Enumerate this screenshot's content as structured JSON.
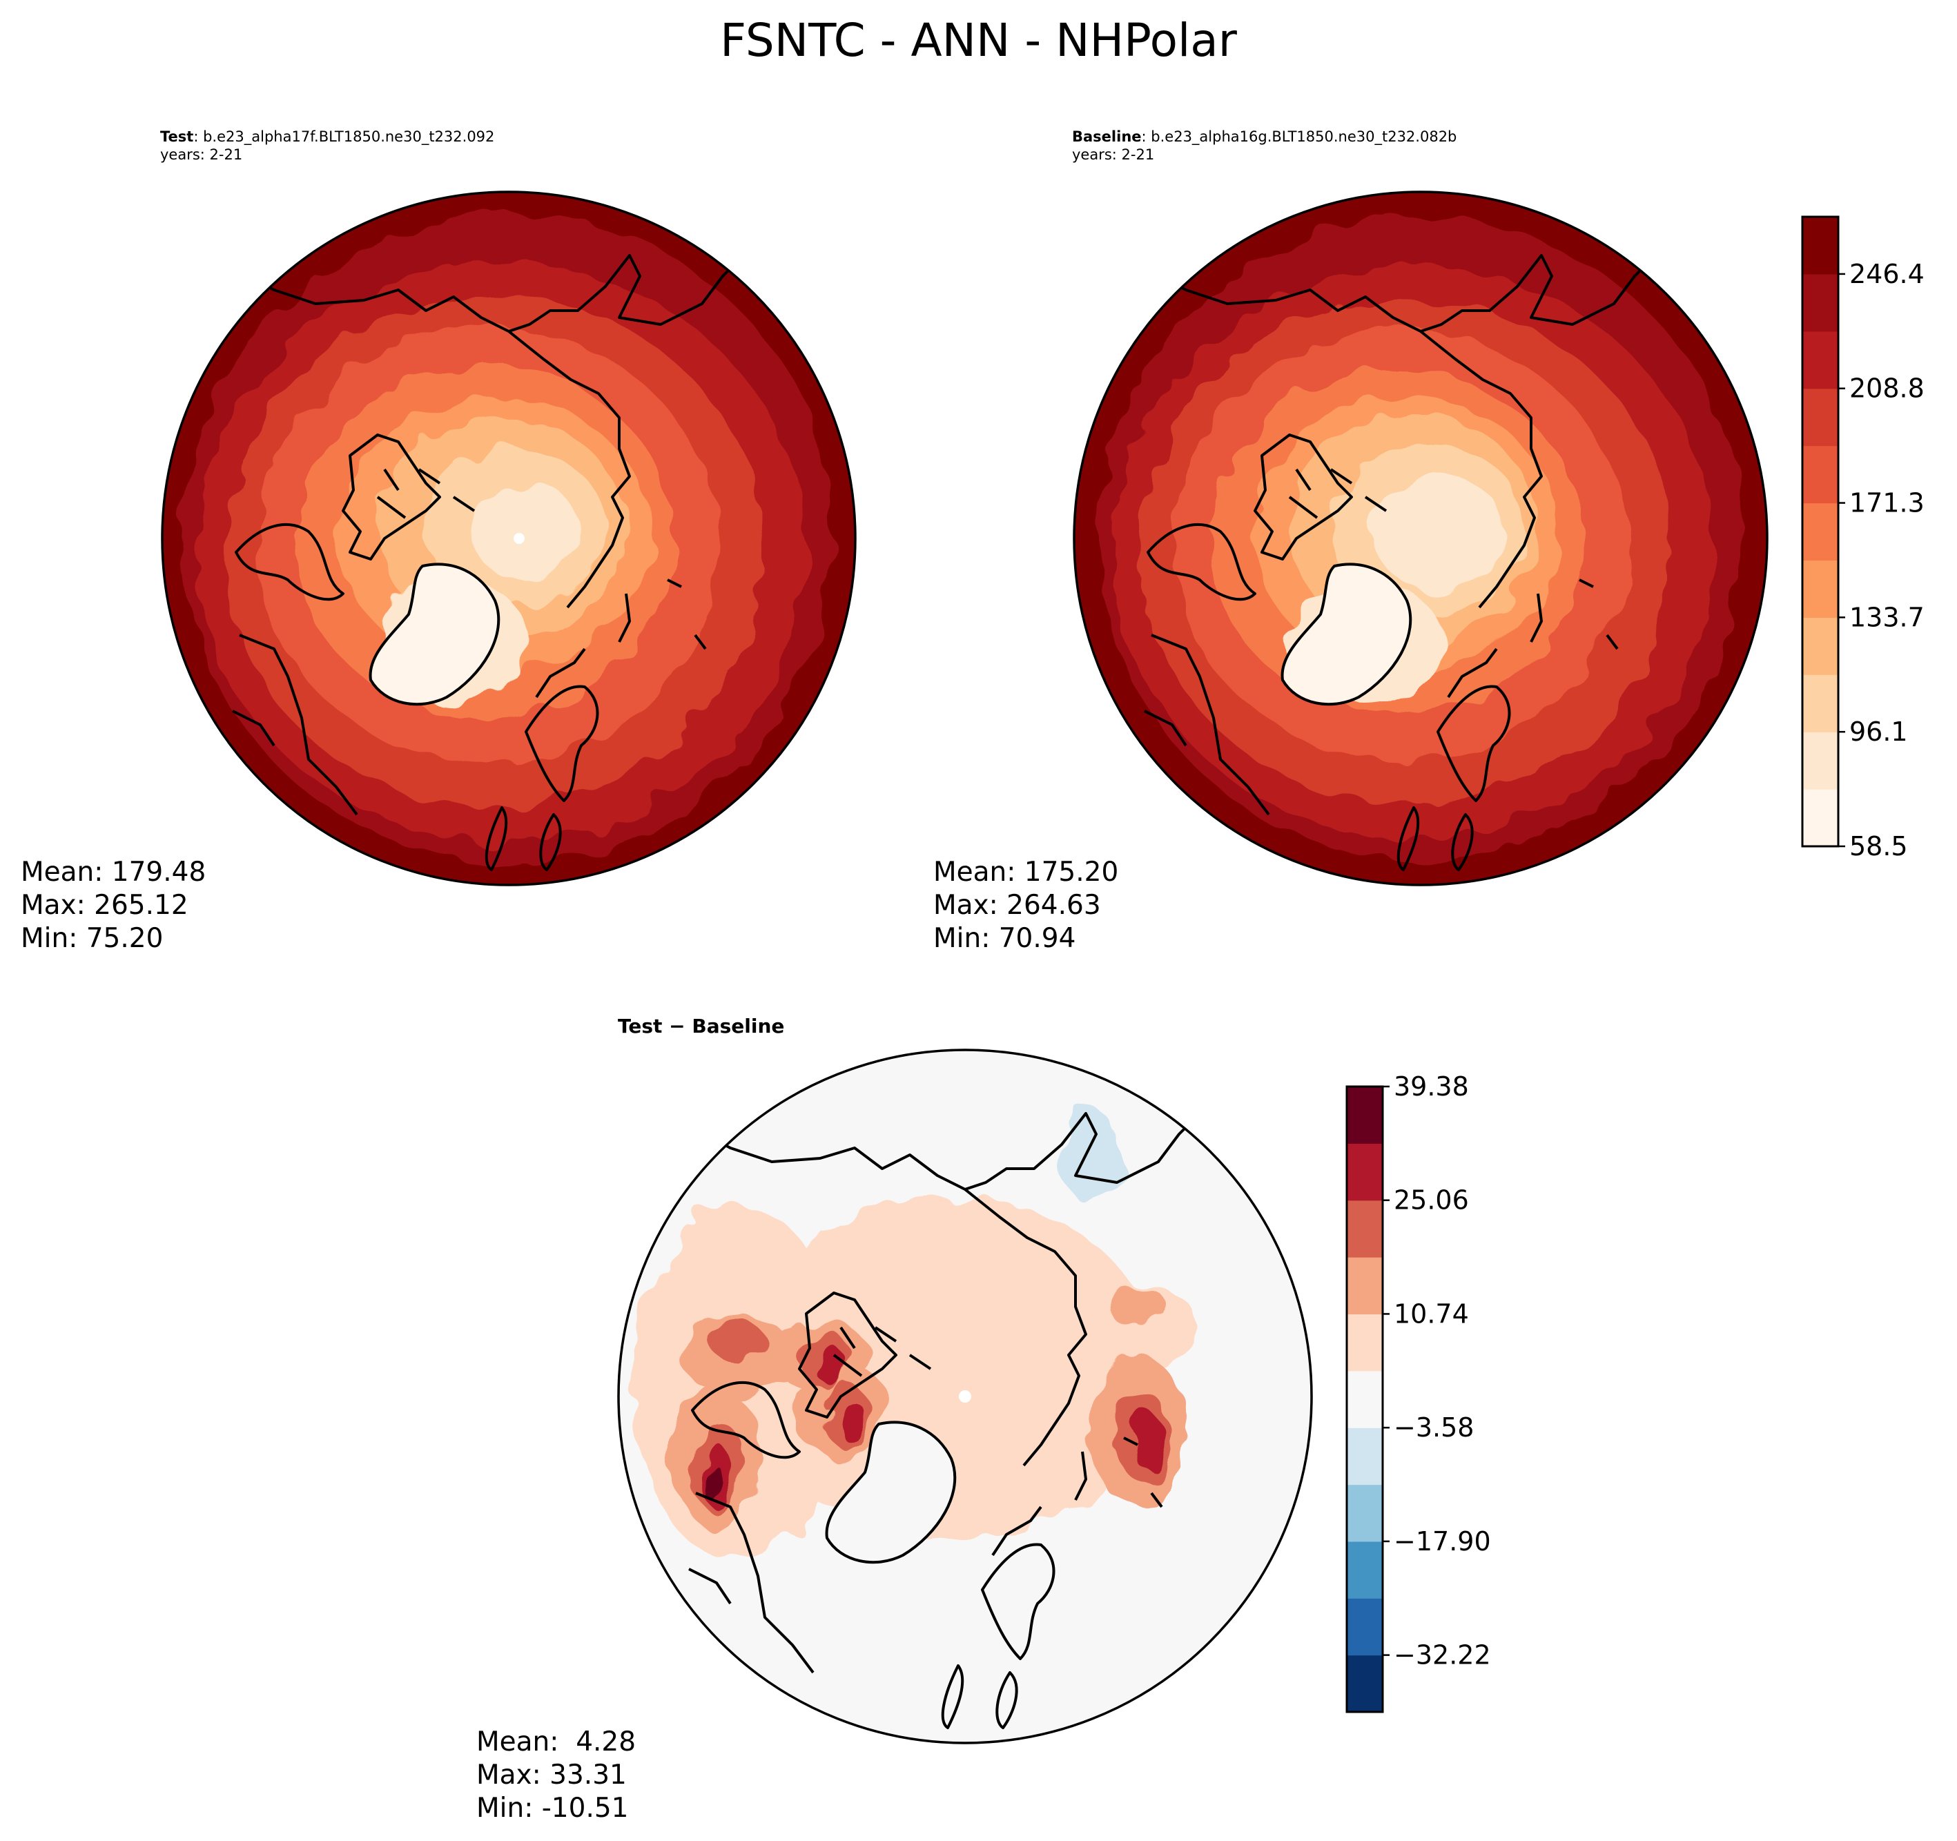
{
  "title": "FSNTC - ANN - NHPolar",
  "test_panel": {
    "label": "Test",
    "case": "b.e23_alpha17f.BLT1850.ne30_t232.092",
    "years": "years: 2-21",
    "stats": {
      "mean": "Mean: 179.48",
      "max": "Max: 265.12",
      "min": "Min: 75.20"
    }
  },
  "baseline_panel": {
    "label": "Baseline",
    "case": "b.e23_alpha16g.BLT1850.ne30_t232.082b",
    "years": "years: 2-21",
    "stats": {
      "mean": "Mean: 175.20",
      "max": "Max: 264.63",
      "min": "Min: 70.94"
    }
  },
  "diff_panel": {
    "title": "Test − Baseline",
    "stats": {
      "mean": "Mean:  4.28",
      "max": "Max: 33.31",
      "min": "Min: -10.51"
    }
  },
  "colorbar_main": {
    "ticks": [
      "58.5",
      "96.1",
      "133.7",
      "171.3",
      "208.8",
      "246.4"
    ],
    "colors": [
      "#fff5eb",
      "#fee7cf",
      "#fdd2a5",
      "#fdb97d",
      "#fc9a5e",
      "#f67a49",
      "#e8563a",
      "#d43d2c",
      "#b81c1e",
      "#9d0e14",
      "#7f0000"
    ]
  },
  "colorbar_diff": {
    "ticks": [
      "39.38",
      "25.06",
      "10.74",
      "−3.58",
      "−17.90",
      "−32.22"
    ],
    "colors": [
      "#08306b",
      "#2366ac",
      "#4393c3",
      "#92c5de",
      "#d1e5f0",
      "#f7f7f7",
      "#fddbc7",
      "#f4a582",
      "#d6604d",
      "#b2182b",
      "#67001f"
    ]
  }
}
